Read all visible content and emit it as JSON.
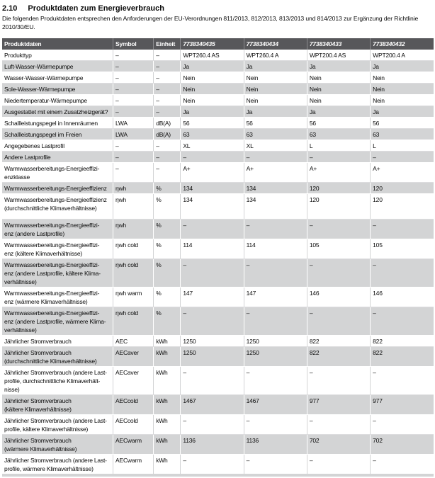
{
  "page": {
    "section_number": "2.10",
    "title": "Produktdaten zum Energieverbrauch",
    "intro": "Die folgenden Produktdaten entsprechen den Anforderungen der EU-Verordnungen 811/2013, 812/2013, 813/2013 und 814/2013 zur Ergänzung der Richtlinie 2010/30/EU."
  },
  "colors": {
    "header_bg": "#57575a",
    "row_alt_bg": "#d3d4d5",
    "header_text": "#ffffff"
  },
  "table": {
    "headers": [
      "Produktdaten",
      "Symbol",
      "Einheit",
      "7738340435",
      "7738340434",
      "7738340433",
      "7738340432"
    ],
    "rows": [
      {
        "label": "Produkttyp",
        "symbol": "–",
        "unit": "–",
        "values": [
          "WPT260.4 AS",
          "WPT260.4 A",
          "WPT200.4 AS",
          "WPT200.4 A"
        ]
      },
      {
        "label": "Luft-Wasser-Wärmepumpe",
        "symbol": "–",
        "unit": "–",
        "values": [
          "Ja",
          "Ja",
          "Ja",
          "Ja"
        ]
      },
      {
        "label": "Wasser-Wasser-Wärmepumpe",
        "symbol": "–",
        "unit": "–",
        "values": [
          "Nein",
          "Nein",
          "Nein",
          "Nein"
        ]
      },
      {
        "label": "Sole-Wasser-Wärmepumpe",
        "symbol": "–",
        "unit": "–",
        "values": [
          "Nein",
          "Nein",
          "Nein",
          "Nein"
        ]
      },
      {
        "label": "Niedertemperatur-Wärmepumpe",
        "symbol": "–",
        "unit": "–",
        "values": [
          "Nein",
          "Nein",
          "Nein",
          "Nein"
        ]
      },
      {
        "label": "Ausgestattet mit einem Zusatzheizgerät?",
        "symbol": "–",
        "unit": "–",
        "values": [
          "Ja",
          "Ja",
          "Ja",
          "Ja"
        ]
      },
      {
        "label": "Schallleistungspegel in Innenräumen",
        "symbol": "LWA",
        "unit": "dB(A)",
        "values": [
          "56",
          "56",
          "56",
          "56"
        ]
      },
      {
        "label": "Schallleistungspegel im Freien",
        "symbol": "LWA",
        "unit": "dB(A)",
        "values": [
          "63",
          "63",
          "63",
          "63"
        ]
      },
      {
        "label": "Angegebenes Lastprofil",
        "symbol": "–",
        "unit": "–",
        "values": [
          "XL",
          "XL",
          "L",
          "L"
        ]
      },
      {
        "label": "Andere Lastprofile",
        "symbol": "–",
        "unit": "–",
        "values": [
          "–",
          "–",
          "–",
          "–"
        ]
      },
      {
        "label": "Warmwasserbereitungs-Energieeffizi-\nenzklasse",
        "symbol": "–",
        "unit": "–",
        "values": [
          "A+",
          "A+",
          "A+",
          "A+"
        ]
      },
      {
        "label": "Warmwasserbereitungs-Energieeffizienz",
        "symbol": "ηwh",
        "unit": "%",
        "values": [
          "134",
          "134",
          "120",
          "120"
        ]
      },
      {
        "label": "Warmwasserbereitungs-Energieeffizienz\n(durchschnittliche Klimaverhältnisse)",
        "symbol": "ηwh",
        "unit": "%",
        "values": [
          "134",
          "134",
          "120",
          "120"
        ],
        "tall": true
      },
      {
        "label": "Warmwasserbereitungs-Energieeffizi-\nenz (andere Lastprofile)",
        "symbol": "ηwh",
        "unit": "%",
        "values": [
          "–",
          "–",
          "–",
          "–"
        ]
      },
      {
        "label": "Warmwasserbereitungs-Energieeffizi-\nenz (kältere Klimaverhältnisse)",
        "symbol": "ηwh cold",
        "unit": "%",
        "values": [
          "114",
          "114",
          "105",
          "105"
        ]
      },
      {
        "label": "Warmwasserbereitungs-Energieeffizi-\nenz (andere Lastprofile, kältere Klima-\nverhältnisse)",
        "symbol": "ηwh cold",
        "unit": "%",
        "values": [
          "–",
          "–",
          "–",
          "–"
        ]
      },
      {
        "label": "Warmwasserbereitungs-Energieeffizi-\nenz (wärmere Klimaverhältnisse)",
        "symbol": "ηwh warm",
        "unit": "%",
        "values": [
          "147",
          "147",
          "146",
          "146"
        ]
      },
      {
        "label": "Warmwasserbereitungs-Energieeffizi-\nenz (andere Lastprofile, wärmere Klima-\nverhältnisse)",
        "symbol": "ηwh cold",
        "unit": "%",
        "values": [
          "–",
          "–",
          "–",
          "–"
        ]
      },
      {
        "label": "Jährlicher Stromverbrauch",
        "symbol": "AEC",
        "unit": "kWh",
        "values": [
          "1250",
          "1250",
          "822",
          "822"
        ]
      },
      {
        "label": "Jährlicher Stromverbrauch\n(durchschnittliche Klimaverhältnisse)",
        "symbol": "AECaver",
        "unit": "kWh",
        "values": [
          "1250",
          "1250",
          "822",
          "822"
        ]
      },
      {
        "label": "Jährlicher Stromverbrauch (andere Last-\nprofile, durchschnittliche Klimaverhält-\nnisse)",
        "symbol": "AECaver",
        "unit": "kWh",
        "values": [
          "–",
          "–",
          "–",
          "–"
        ]
      },
      {
        "label": "Jährlicher Stromverbrauch\n(kältere Klimaverhältnisse)",
        "symbol": "AECcold",
        "unit": "kWh",
        "values": [
          "1467",
          "1467",
          "977",
          "977"
        ]
      },
      {
        "label": "Jährlicher Stromverbrauch (andere Last-\nprofile, kältere Klimaverhältnisse)",
        "symbol": "AECcold",
        "unit": "kWh",
        "values": [
          "–",
          "–",
          "–",
          "–"
        ]
      },
      {
        "label": "Jährlicher Stromverbrauch\n(wärmere Klimaverhältnisse)",
        "symbol": "AECwarm",
        "unit": "kWh",
        "values": [
          "1136",
          "1136",
          "702",
          "702"
        ]
      },
      {
        "label": "Jährlicher Stromverbrauch (andere Last-\nprofile, wärmere Klimaverhältnisse)",
        "symbol": "AECwarm",
        "unit": "kWh",
        "values": [
          "–",
          "–",
          "–",
          "–"
        ]
      }
    ]
  }
}
